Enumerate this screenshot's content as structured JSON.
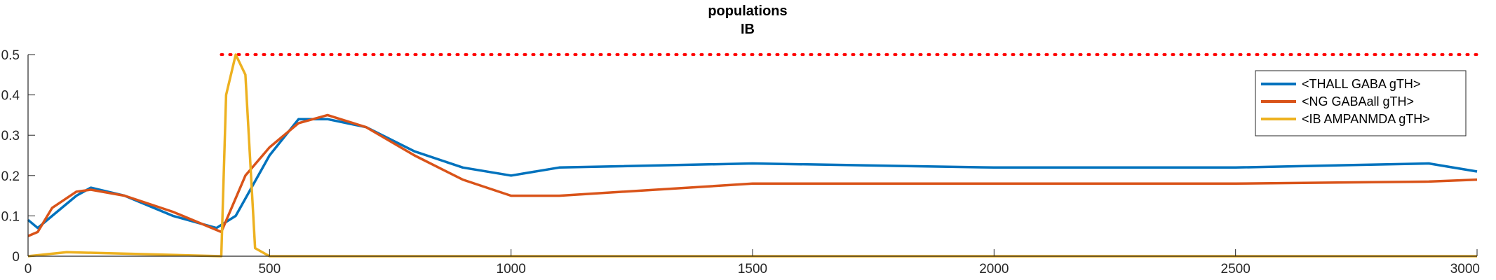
{
  "chart_data": {
    "type": "line",
    "title": "populations",
    "subtitle": "IB",
    "xlabel": "",
    "ylabel": "",
    "xlim": [
      0,
      3000
    ],
    "ylim": [
      0,
      0.5
    ],
    "x_ticks": [
      "0",
      "500",
      "1000",
      "1500",
      "2000",
      "2500",
      "3000"
    ],
    "y_ticks": [
      "0",
      "0.1",
      "0.2",
      "0.3",
      "0.4",
      "0.5"
    ],
    "grid": false,
    "legend_position": "top-right",
    "series": [
      {
        "name": "<THALL GABA gTH>",
        "color": "#0072BD",
        "style": "solid",
        "description": "spiky trace; shown as key samples (ms, value)",
        "x": [
          0,
          20,
          50,
          100,
          130,
          200,
          300,
          390,
          430,
          500,
          560,
          620,
          700,
          800,
          900,
          1000,
          1100,
          1500,
          2000,
          2500,
          2900,
          3000
        ],
        "y": [
          0.09,
          0.07,
          0.1,
          0.15,
          0.17,
          0.15,
          0.1,
          0.07,
          0.1,
          0.25,
          0.34,
          0.34,
          0.32,
          0.26,
          0.22,
          0.2,
          0.22,
          0.23,
          0.22,
          0.22,
          0.23,
          0.21
        ]
      },
      {
        "name": "<NG GABAall gTH>",
        "color": "#D95319",
        "style": "solid",
        "x": [
          0,
          20,
          50,
          100,
          130,
          200,
          300,
          400,
          450,
          500,
          560,
          620,
          700,
          800,
          900,
          1000,
          1100,
          1500,
          2000,
          2500,
          2900,
          3000
        ],
        "y": [
          0.05,
          0.06,
          0.12,
          0.16,
          0.165,
          0.15,
          0.11,
          0.06,
          0.2,
          0.27,
          0.33,
          0.35,
          0.32,
          0.25,
          0.19,
          0.15,
          0.15,
          0.18,
          0.18,
          0.18,
          0.185,
          0.19
        ]
      },
      {
        "name": "<IB AMPANMDA gTH>",
        "color": "#EDB120",
        "style": "solid",
        "description": "near-zero baseline with bursts; shown as key samples (ms, value)",
        "x": [
          0,
          80,
          400,
          410,
          430,
          450,
          470,
          500,
          1000,
          1500,
          2000,
          2500,
          3000
        ],
        "y": [
          0.0,
          0.01,
          0.0,
          0.4,
          0.5,
          0.45,
          0.02,
          0.0,
          0.0,
          0.0,
          0.0,
          0.0,
          0.0
        ]
      },
      {
        "name": "",
        "color": "#FF0000",
        "style": "dotted",
        "x": [
          400,
          3000
        ],
        "y": [
          0.5,
          0.5
        ]
      }
    ]
  }
}
